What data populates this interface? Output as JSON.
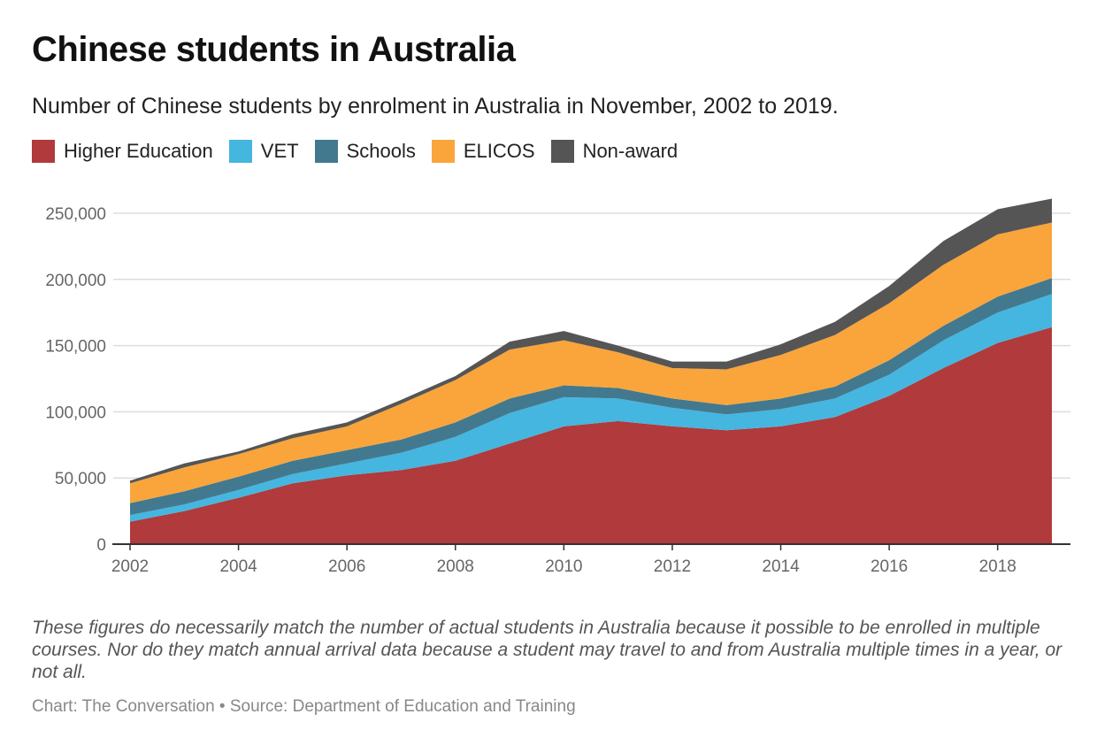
{
  "title": "Chinese students in Australia",
  "subtitle": "Number of Chinese students by enrolment in Australia in November, 2002 to 2019.",
  "note": "These figures do necessarily match the number of actual students in Australia because it possible to be enrolled in multiple courses. Nor do they match annual arrival data because a student may travel to and from Australia multiple times in a year, or not all.",
  "source": "Chart: The Conversation • Source: Department of Education and Training",
  "legend": [
    {
      "label": "Higher Education",
      "color": "#b03a3c"
    },
    {
      "label": "VET",
      "color": "#45b6df"
    },
    {
      "label": "Schools",
      "color": "#43798f"
    },
    {
      "label": "ELICOS",
      "color": "#f9a53b"
    },
    {
      "label": "Non-award",
      "color": "#555555"
    }
  ],
  "chart_data": {
    "type": "area",
    "stacked": true,
    "title": "Chinese students in Australia",
    "subtitle": "Number of Chinese students by enrolment in Australia in November, 2002 to 2019.",
    "xlabel": "",
    "ylabel": "",
    "x": [
      2002,
      2003,
      2004,
      2005,
      2006,
      2007,
      2008,
      2009,
      2010,
      2011,
      2012,
      2013,
      2014,
      2015,
      2016,
      2017,
      2018,
      2019
    ],
    "x_ticks": [
      "2002",
      "2004",
      "2006",
      "2008",
      "2010",
      "2012",
      "2014",
      "2016",
      "2018"
    ],
    "x_tick_values": [
      2002,
      2004,
      2006,
      2008,
      2010,
      2012,
      2014,
      2016,
      2018
    ],
    "y_ticks": [
      "0",
      "50,000",
      "100,000",
      "150,000",
      "200,000",
      "250,000"
    ],
    "y_tick_values": [
      0,
      50000,
      100000,
      150000,
      200000,
      250000
    ],
    "ylim": [
      0,
      250000
    ],
    "grid": true,
    "legend_position": "top-left",
    "series": [
      {
        "name": "Higher Education",
        "color": "#b03a3c",
        "values": [
          17000,
          25000,
          35000,
          46000,
          52000,
          56000,
          63000,
          76000,
          89000,
          93000,
          89000,
          86000,
          89000,
          96000,
          112000,
          133000,
          152000,
          164000
        ]
      },
      {
        "name": "VET",
        "color": "#45b6df",
        "values": [
          5000,
          5000,
          6000,
          7000,
          9000,
          13000,
          18000,
          23000,
          22000,
          17000,
          14000,
          12000,
          13000,
          14000,
          16000,
          21000,
          23000,
          25000
        ]
      },
      {
        "name": "Schools",
        "color": "#43798f",
        "values": [
          9000,
          10000,
          10000,
          10000,
          10000,
          10000,
          11000,
          11000,
          9000,
          8000,
          7000,
          7000,
          8000,
          9000,
          11000,
          11000,
          12000,
          12000
        ]
      },
      {
        "name": "ELICOS",
        "color": "#f9a53b",
        "values": [
          15000,
          18000,
          17000,
          17000,
          18000,
          27000,
          32000,
          37000,
          34000,
          27000,
          23000,
          27000,
          33000,
          39000,
          43000,
          46000,
          47000,
          42000
        ]
      },
      {
        "name": "Non-award",
        "color": "#555555",
        "values": [
          2000,
          3000,
          2000,
          3000,
          3000,
          3000,
          3000,
          6000,
          7000,
          5000,
          5000,
          6000,
          8000,
          10000,
          13000,
          18000,
          19000,
          18000
        ]
      }
    ]
  }
}
